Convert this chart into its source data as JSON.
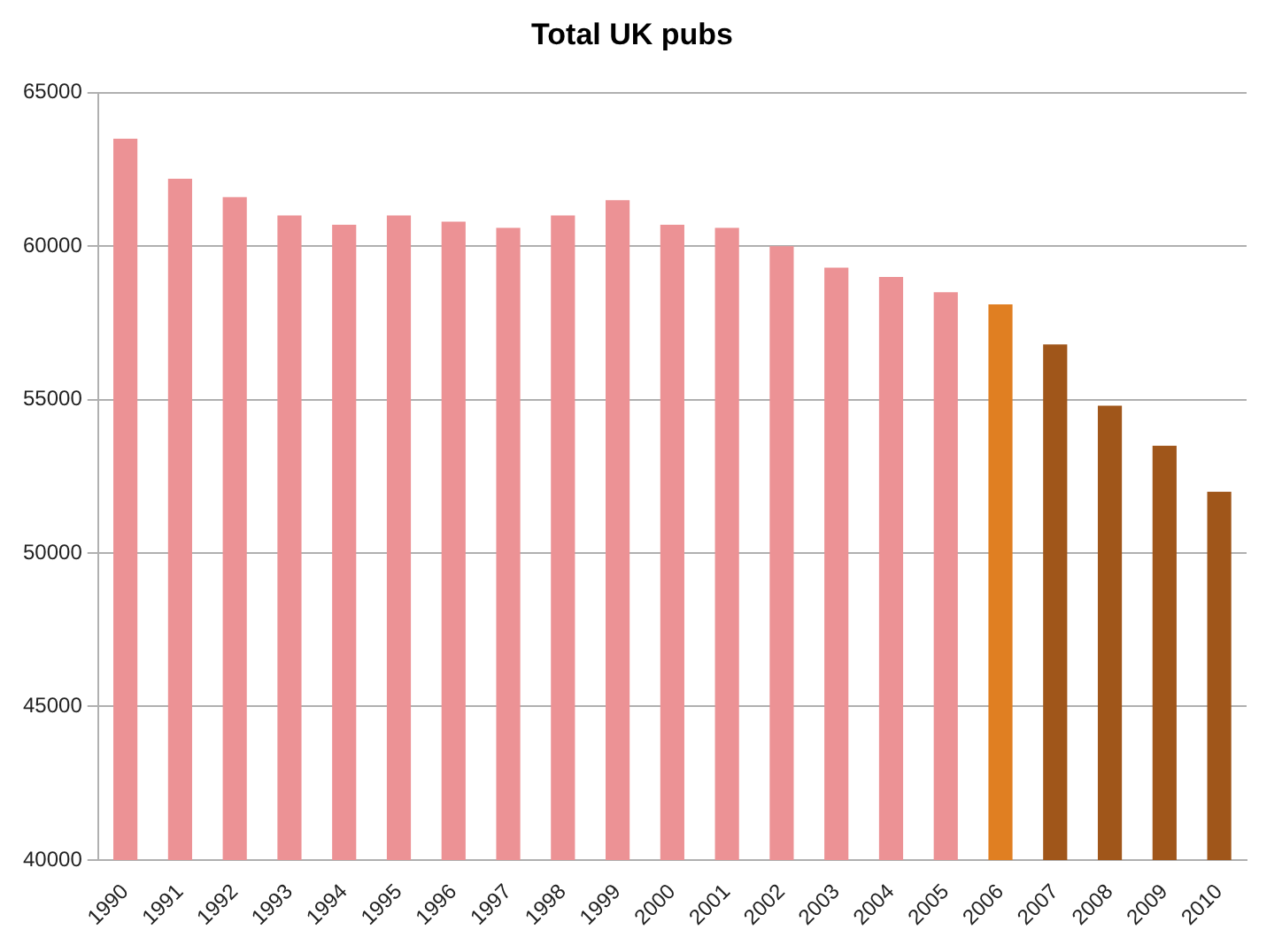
{
  "chart_data": {
    "type": "bar",
    "title": "Total UK pubs",
    "categories": [
      "1990",
      "1991",
      "1992",
      "1993",
      "1994",
      "1995",
      "1996",
      "1997",
      "1998",
      "1999",
      "2000",
      "2001",
      "2002",
      "2003",
      "2004",
      "2005",
      "2006",
      "2007",
      "2008",
      "2009",
      "2010"
    ],
    "values": [
      63500,
      62200,
      61600,
      61000,
      60700,
      61000,
      60800,
      60600,
      61000,
      61500,
      60700,
      60600,
      60000,
      59300,
      59000,
      58500,
      58100,
      56800,
      54800,
      53500,
      52000
    ],
    "colors": [
      "#ec9295",
      "#ec9295",
      "#ec9295",
      "#ec9295",
      "#ec9295",
      "#ec9295",
      "#ec9295",
      "#ec9295",
      "#ec9295",
      "#ec9295",
      "#ec9295",
      "#ec9295",
      "#ec9295",
      "#ec9295",
      "#ec9295",
      "#ec9295",
      "#e07f22",
      "#a0561a",
      "#a0561a",
      "#a0561a",
      "#a0561a"
    ],
    "ylim": [
      40000,
      65000
    ],
    "yticks": [
      40000,
      45000,
      50000,
      55000,
      60000,
      65000
    ],
    "grid": "y"
  }
}
